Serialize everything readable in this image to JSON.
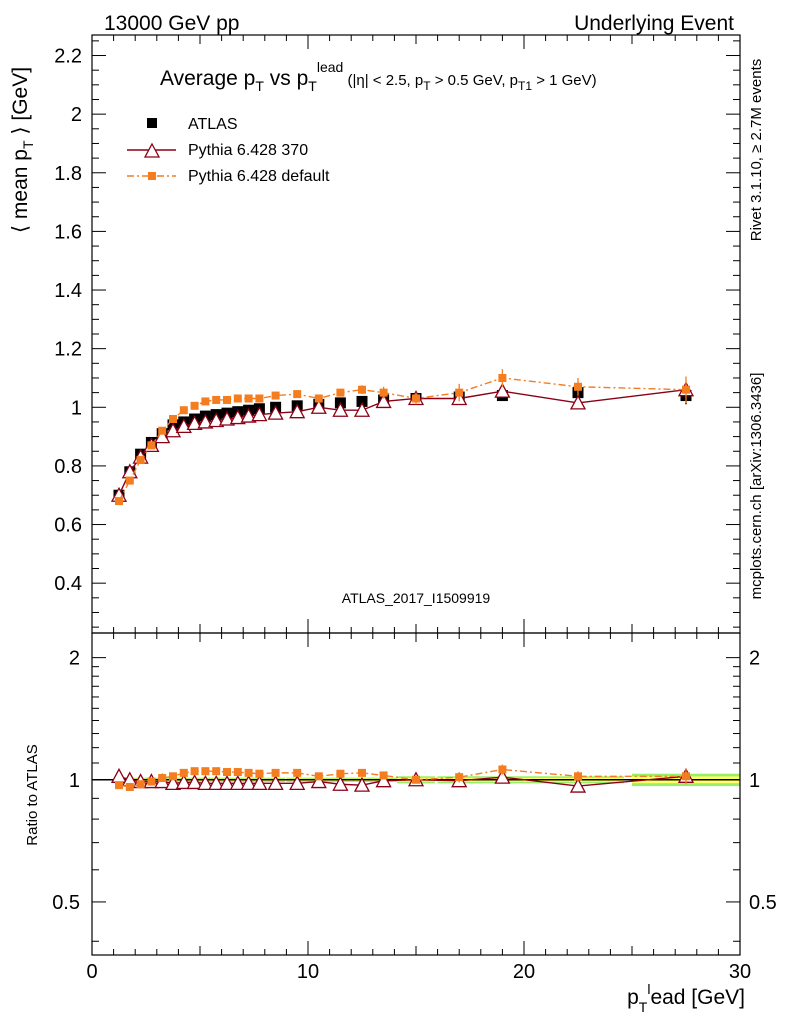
{
  "header": {
    "left": "13000 GeV pp",
    "right": "Underlying Event"
  },
  "side_labels": {
    "rivet": "Rivet 3.1.10, ≥ 2.7M events",
    "mcplots": "mcplots.cern.ch [arXiv:1306.3436]"
  },
  "chart_data": {
    "type": "scatter",
    "title": "Average pT vs pTlead (|η| < 2.5, pT > 0.5 GeV, pT1 > 1 GeV)",
    "analysis_label": "ATLAS_2017_I1509919",
    "xlabel": "pTlead [GeV]",
    "ylabel": "⟨ mean pT ⟩ [GeV]",
    "ratio_ylabel": "Ratio to ATLAS",
    "xlim": [
      0,
      30
    ],
    "ylim": [
      0.23,
      2.27
    ],
    "ratio_ylim": [
      0.37,
      2.3
    ],
    "ratio_log_scale": true,
    "x_ticks": [
      "0",
      "10",
      "20",
      "30"
    ],
    "y_ticks": [
      "0.4",
      "0.6",
      "0.8",
      "1",
      "1.2",
      "1.4",
      "1.6",
      "1.8",
      "2",
      "2.2"
    ],
    "ratio_ticks": [
      "0.5",
      "1",
      "2"
    ],
    "legend_position": "top-left",
    "colors": {
      "atlas": "#000000",
      "p370": "#8b0015",
      "pdef": "#f47d20",
      "band_inner": "#ffff66",
      "band_outer": "#99ee66"
    },
    "x": [
      1.25,
      1.75,
      2.25,
      2.75,
      3.25,
      3.75,
      4.25,
      4.75,
      5.25,
      5.75,
      6.25,
      6.75,
      7.25,
      7.75,
      8.5,
      9.5,
      10.5,
      11.5,
      12.5,
      13.5,
      15,
      17,
      19,
      22.5,
      27.5
    ],
    "series": [
      {
        "name": "ATLAS",
        "values": [
          0.7,
          0.78,
          0.84,
          0.88,
          0.91,
          0.94,
          0.95,
          0.96,
          0.97,
          0.975,
          0.98,
          0.985,
          0.99,
          0.995,
          1.0,
          1.005,
          1.01,
          1.015,
          1.02,
          1.025,
          1.03,
          1.035,
          1.04,
          1.05,
          1.04
        ]
      },
      {
        "name": "Pythia 6.428 370",
        "values": [
          0.7,
          0.78,
          0.83,
          0.87,
          0.9,
          0.92,
          0.935,
          0.945,
          0.95,
          0.955,
          0.96,
          0.965,
          0.97,
          0.975,
          0.98,
          0.985,
          1.0,
          0.99,
          0.99,
          1.02,
          1.03,
          1.03,
          1.055,
          1.015,
          1.06
        ]
      },
      {
        "name": "Pythia 6.428 default",
        "values": [
          0.68,
          0.75,
          0.82,
          0.87,
          0.92,
          0.96,
          0.99,
          1.005,
          1.02,
          1.025,
          1.025,
          1.03,
          1.03,
          1.03,
          1.04,
          1.045,
          1.03,
          1.05,
          1.06,
          1.05,
          1.03,
          1.05,
          1.1,
          1.07,
          1.06
        ]
      }
    ],
    "errors": {
      "pdef": [
        0,
        0,
        0,
        0,
        0,
        0,
        0,
        0,
        0,
        0,
        0,
        0,
        0,
        0,
        0,
        0,
        0.01,
        0.01,
        0.015,
        0.02,
        0.02,
        0.03,
        0.03,
        0.03,
        0.045
      ],
      "atlas": [
        0,
        0,
        0,
        0,
        0,
        0,
        0,
        0,
        0,
        0,
        0,
        0,
        0,
        0,
        0,
        0,
        0,
        0,
        0,
        0,
        0,
        0,
        0.015,
        0.02,
        0.03
      ]
    },
    "ratio_series": [
      {
        "name": "Pythia 6.428 370",
        "values": [
          1.02,
          1.0,
          0.99,
          0.99,
          0.99,
          0.98,
          0.985,
          0.985,
          0.98,
          0.98,
          0.98,
          0.98,
          0.98,
          0.98,
          0.98,
          0.98,
          0.99,
          0.975,
          0.97,
          0.995,
          1.0,
          0.995,
          1.015,
          0.965,
          1.02
        ]
      },
      {
        "name": "Pythia 6.428 default",
        "values": [
          0.97,
          0.96,
          0.975,
          0.99,
          1.01,
          1.02,
          1.04,
          1.05,
          1.05,
          1.05,
          1.045,
          1.045,
          1.04,
          1.035,
          1.04,
          1.04,
          1.02,
          1.035,
          1.04,
          1.025,
          1.0,
          1.015,
          1.06,
          1.02,
          1.02
        ]
      }
    ]
  }
}
